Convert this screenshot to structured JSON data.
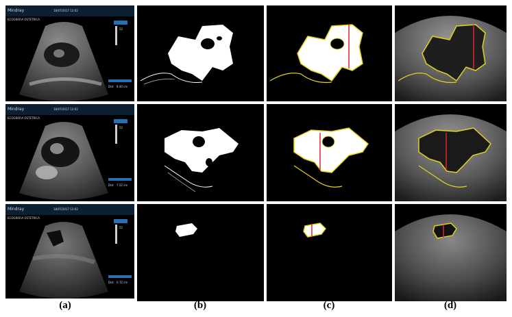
{
  "figure": {
    "captions": [
      "(a)",
      "(b)",
      "(c)",
      "(d)"
    ],
    "rows": [
      {
        "scanner_brand": "Mindray",
        "scanner_header": "ECOGRAFIA OSTETRICA",
        "scanner_date": "18/07/2017 12:02",
        "gain_value": "52",
        "measure_label": "Dist",
        "measure_value": "8.40 cm"
      },
      {
        "scanner_brand": "Mindray",
        "scanner_header": "ECOGRAFIA OSTETRICA",
        "scanner_date": "18/07/2017 12:02",
        "gain_value": "52",
        "measure_label": "Dist",
        "measure_value": "7.52 cm"
      },
      {
        "scanner_brand": "Mindray",
        "scanner_header": "ECOGRAFIA OSTETRICA",
        "scanner_date": "18/07/2017 12:02",
        "gain_value": "52",
        "measure_label": "Dist",
        "measure_value": "0.72 cm"
      }
    ]
  },
  "colors": {
    "contour": "#e6d21a",
    "measure_line": "#e0282a",
    "mask": "#ffffff",
    "background": "#000000"
  }
}
